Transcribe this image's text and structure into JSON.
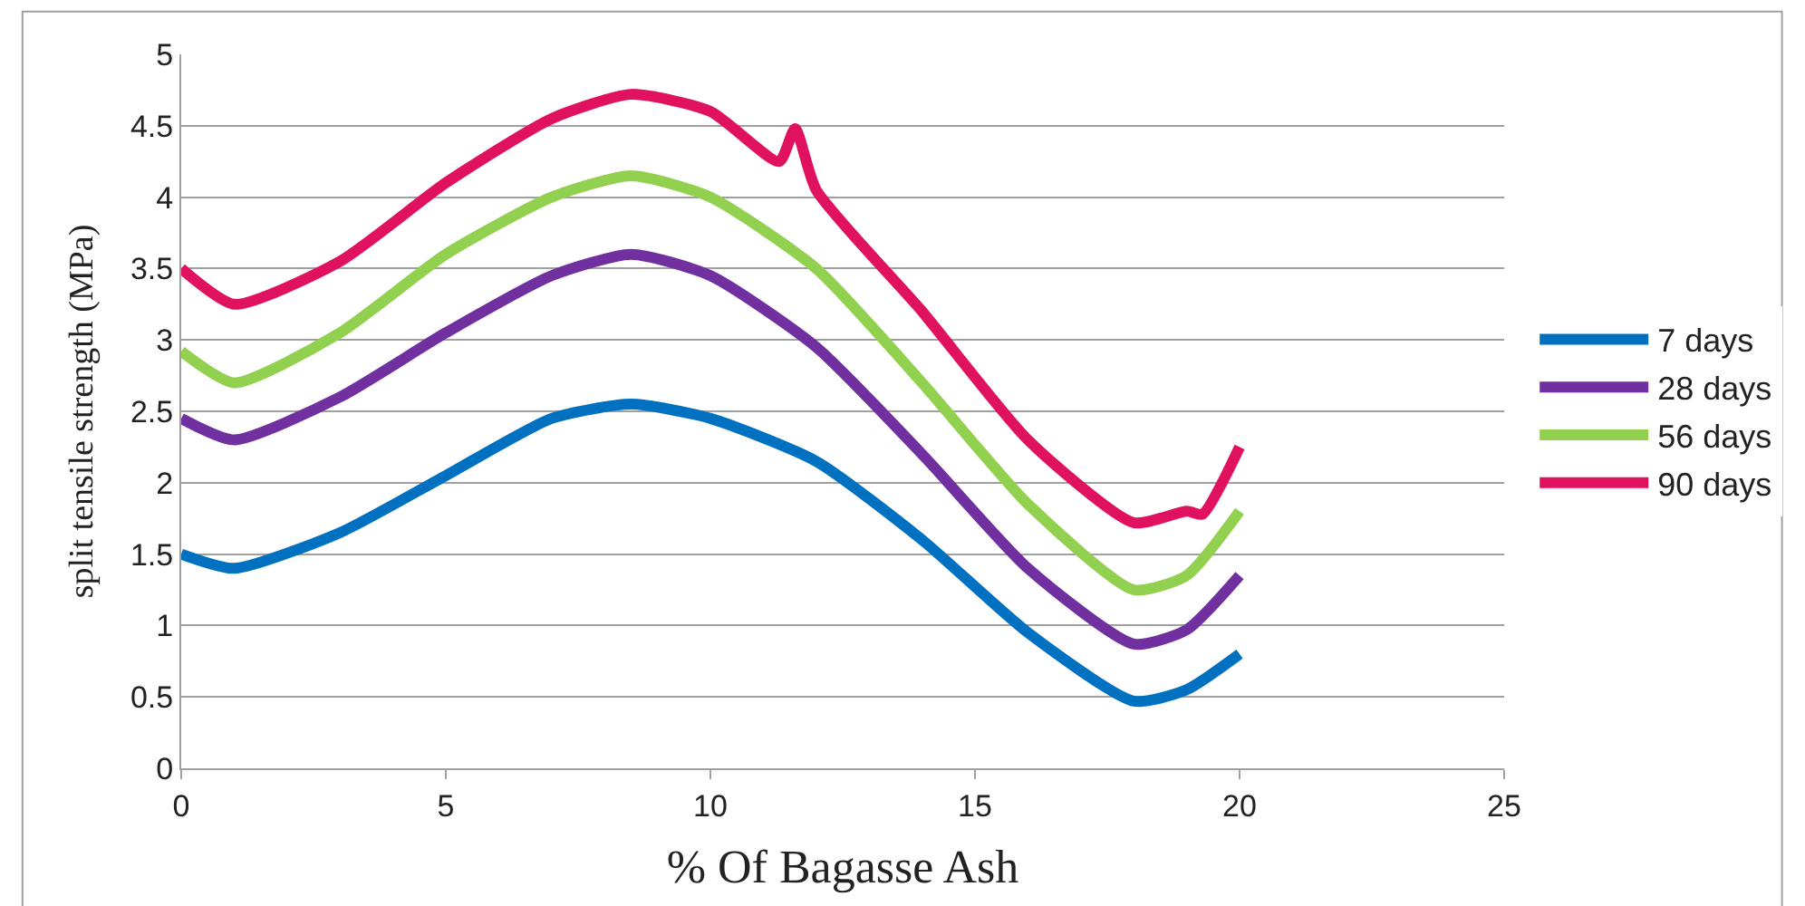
{
  "chart_data": {
    "type": "line",
    "xlabel": "% Of Bagasse Ash",
    "ylabel": "split tensile strength (MPa)",
    "xlim": [
      0,
      25
    ],
    "xticks": [
      0,
      5,
      10,
      15,
      20,
      25
    ],
    "ylim": [
      0,
      5
    ],
    "yticks": [
      0,
      0.5,
      1,
      1.5,
      2,
      2.5,
      3,
      3.5,
      4,
      4.5,
      5
    ],
    "grid": "y",
    "legend": "right",
    "marker": "none",
    "line_style": "solid",
    "series": [
      {
        "name": "7 days",
        "color": "#0070c0",
        "x": [
          0,
          1,
          3,
          5,
          7,
          8.5,
          10,
          12,
          14,
          16,
          18,
          19,
          20
        ],
        "values": [
          1.5,
          1.4,
          1.65,
          2.05,
          2.45,
          2.55,
          2.45,
          2.15,
          1.6,
          0.95,
          0.47,
          0.55,
          0.8
        ]
      },
      {
        "name": "28 days",
        "color": "#7030a0",
        "x": [
          0,
          1,
          3,
          5,
          7,
          8.5,
          10,
          12,
          14,
          16,
          18,
          19,
          20
        ],
        "values": [
          2.45,
          2.3,
          2.6,
          3.05,
          3.45,
          3.6,
          3.45,
          2.95,
          2.2,
          1.4,
          0.87,
          0.97,
          1.35
        ]
      },
      {
        "name": "56 days",
        "color": "#92d050",
        "x": [
          0,
          1,
          3,
          5,
          7,
          8.5,
          10,
          12,
          14,
          16,
          18,
          19,
          20
        ],
        "values": [
          2.92,
          2.7,
          3.05,
          3.6,
          4.0,
          4.15,
          4.0,
          3.5,
          2.7,
          1.85,
          1.25,
          1.35,
          1.8
        ]
      },
      {
        "name": "90 days",
        "color": "#e0115f",
        "x": [
          0,
          1,
          3,
          5,
          7,
          8.5,
          10,
          11.3,
          11.6,
          12,
          14,
          16,
          18,
          19,
          19.3,
          20
        ],
        "values": [
          3.5,
          3.25,
          3.55,
          4.1,
          4.55,
          4.72,
          4.6,
          4.25,
          4.48,
          4.05,
          3.2,
          2.3,
          1.72,
          1.8,
          1.78,
          2.25
        ]
      }
    ]
  }
}
